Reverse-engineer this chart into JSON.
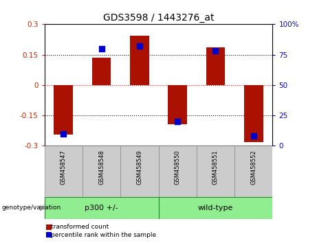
{
  "title": "GDS3598 / 1443276_at",
  "samples": [
    "GSM458547",
    "GSM458548",
    "GSM458549",
    "GSM458550",
    "GSM458551",
    "GSM458552"
  ],
  "red_values": [
    -0.245,
    0.135,
    0.245,
    -0.195,
    0.185,
    -0.28
  ],
  "blue_values_pct": [
    10,
    80,
    82,
    20,
    78,
    8
  ],
  "group_bg_color": "#90EE90",
  "sample_bg_color": "#cccccc",
  "ylim_left": [
    -0.3,
    0.3
  ],
  "ylim_right": [
    0,
    100
  ],
  "yticks_left": [
    -0.3,
    -0.15,
    0,
    0.15,
    0.3
  ],
  "yticks_right": [
    0,
    25,
    50,
    75,
    100
  ],
  "hlines": [
    -0.15,
    0,
    0.15
  ],
  "hline_colors": [
    "black",
    "red",
    "black"
  ],
  "hline_styles": [
    "dotted",
    "dotted",
    "dotted"
  ],
  "bar_color": "#aa1100",
  "dot_color": "#0000cc",
  "bar_width": 0.5,
  "dot_size": 30,
  "left_tick_color": "#cc2200",
  "right_tick_color": "#0000cc",
  "group_defs": [
    {
      "label": "p300 +/-",
      "start": 0,
      "end": 2
    },
    {
      "label": "wild-type",
      "start": 3,
      "end": 5
    }
  ],
  "legend_items": [
    {
      "color": "#aa1100",
      "label": "transformed count"
    },
    {
      "color": "#0000cc",
      "label": "percentile rank within the sample"
    }
  ]
}
